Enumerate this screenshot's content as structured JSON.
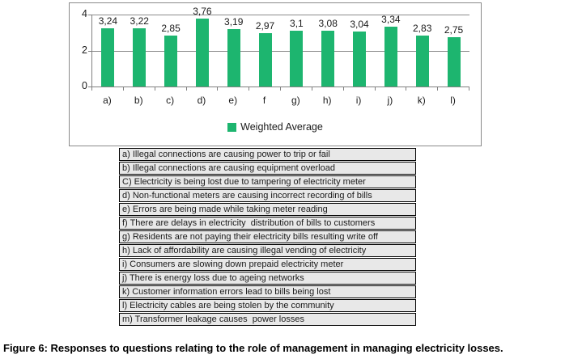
{
  "figure": {
    "caption": "Figure 6: Responses to questions relating to the role of management in managing electricity losses."
  },
  "chart_data": {
    "type": "bar",
    "title": "",
    "xlabel": "",
    "ylabel": "",
    "categories": [
      "a)",
      "b)",
      "c)",
      "d)",
      "e)",
      "f",
      "g)",
      "h)",
      "i)",
      "j)",
      "k)",
      "l)"
    ],
    "series": [
      {
        "name": "Weighted Average",
        "values": [
          3.24,
          3.22,
          2.85,
          3.76,
          3.19,
          2.97,
          3.1,
          3.08,
          3.04,
          3.34,
          2.83,
          2.75
        ],
        "labels": [
          "3,24",
          "3,22",
          "2,85",
          "3,76",
          "3,19",
          "2,97",
          "3,1",
          "3,08",
          "3,04",
          "3,34",
          "2,83",
          "2,75"
        ]
      }
    ],
    "ylim": [
      0,
      4
    ],
    "yticks": [
      0,
      2,
      4
    ],
    "grid": true,
    "legend_position": "bottom",
    "decimal_separator": ","
  },
  "legend": {
    "swatch_color": "#1db56f",
    "label": "Weighted Average"
  },
  "table": {
    "rows": [
      "a) Illegal connections are causing power to trip or fail",
      "b) Illegal connections are causing equipment overload",
      "C) Electricity is being lost due to tampering of electricity meter",
      "d) Non-functional meters are causing incorrect recording of bills",
      "e) Errors are being made while taking meter reading",
      "f) There are delays in electricity  distribution of bills to customers",
      "g) Residents are not paying their electricity bills resulting write off",
      "h) Lack of affordability are causing illegal vending of electricity",
      "i) Consumers are slowing down prepaid electricity meter",
      "j) There is energy loss due to ageing networks",
      "k) Customer information errors lead to bills being lost",
      "l) Electricity cables are being stolen by the community",
      "m) Transformer leakage causes  power losses"
    ]
  },
  "colors": {
    "bar_green": "#1db56f",
    "gridline": "#8c8c8c",
    "axis": "#808080",
    "chart_border": "#8a8a8a",
    "table_fill": "#e8e8e8",
    "table_border": "#000000"
  }
}
